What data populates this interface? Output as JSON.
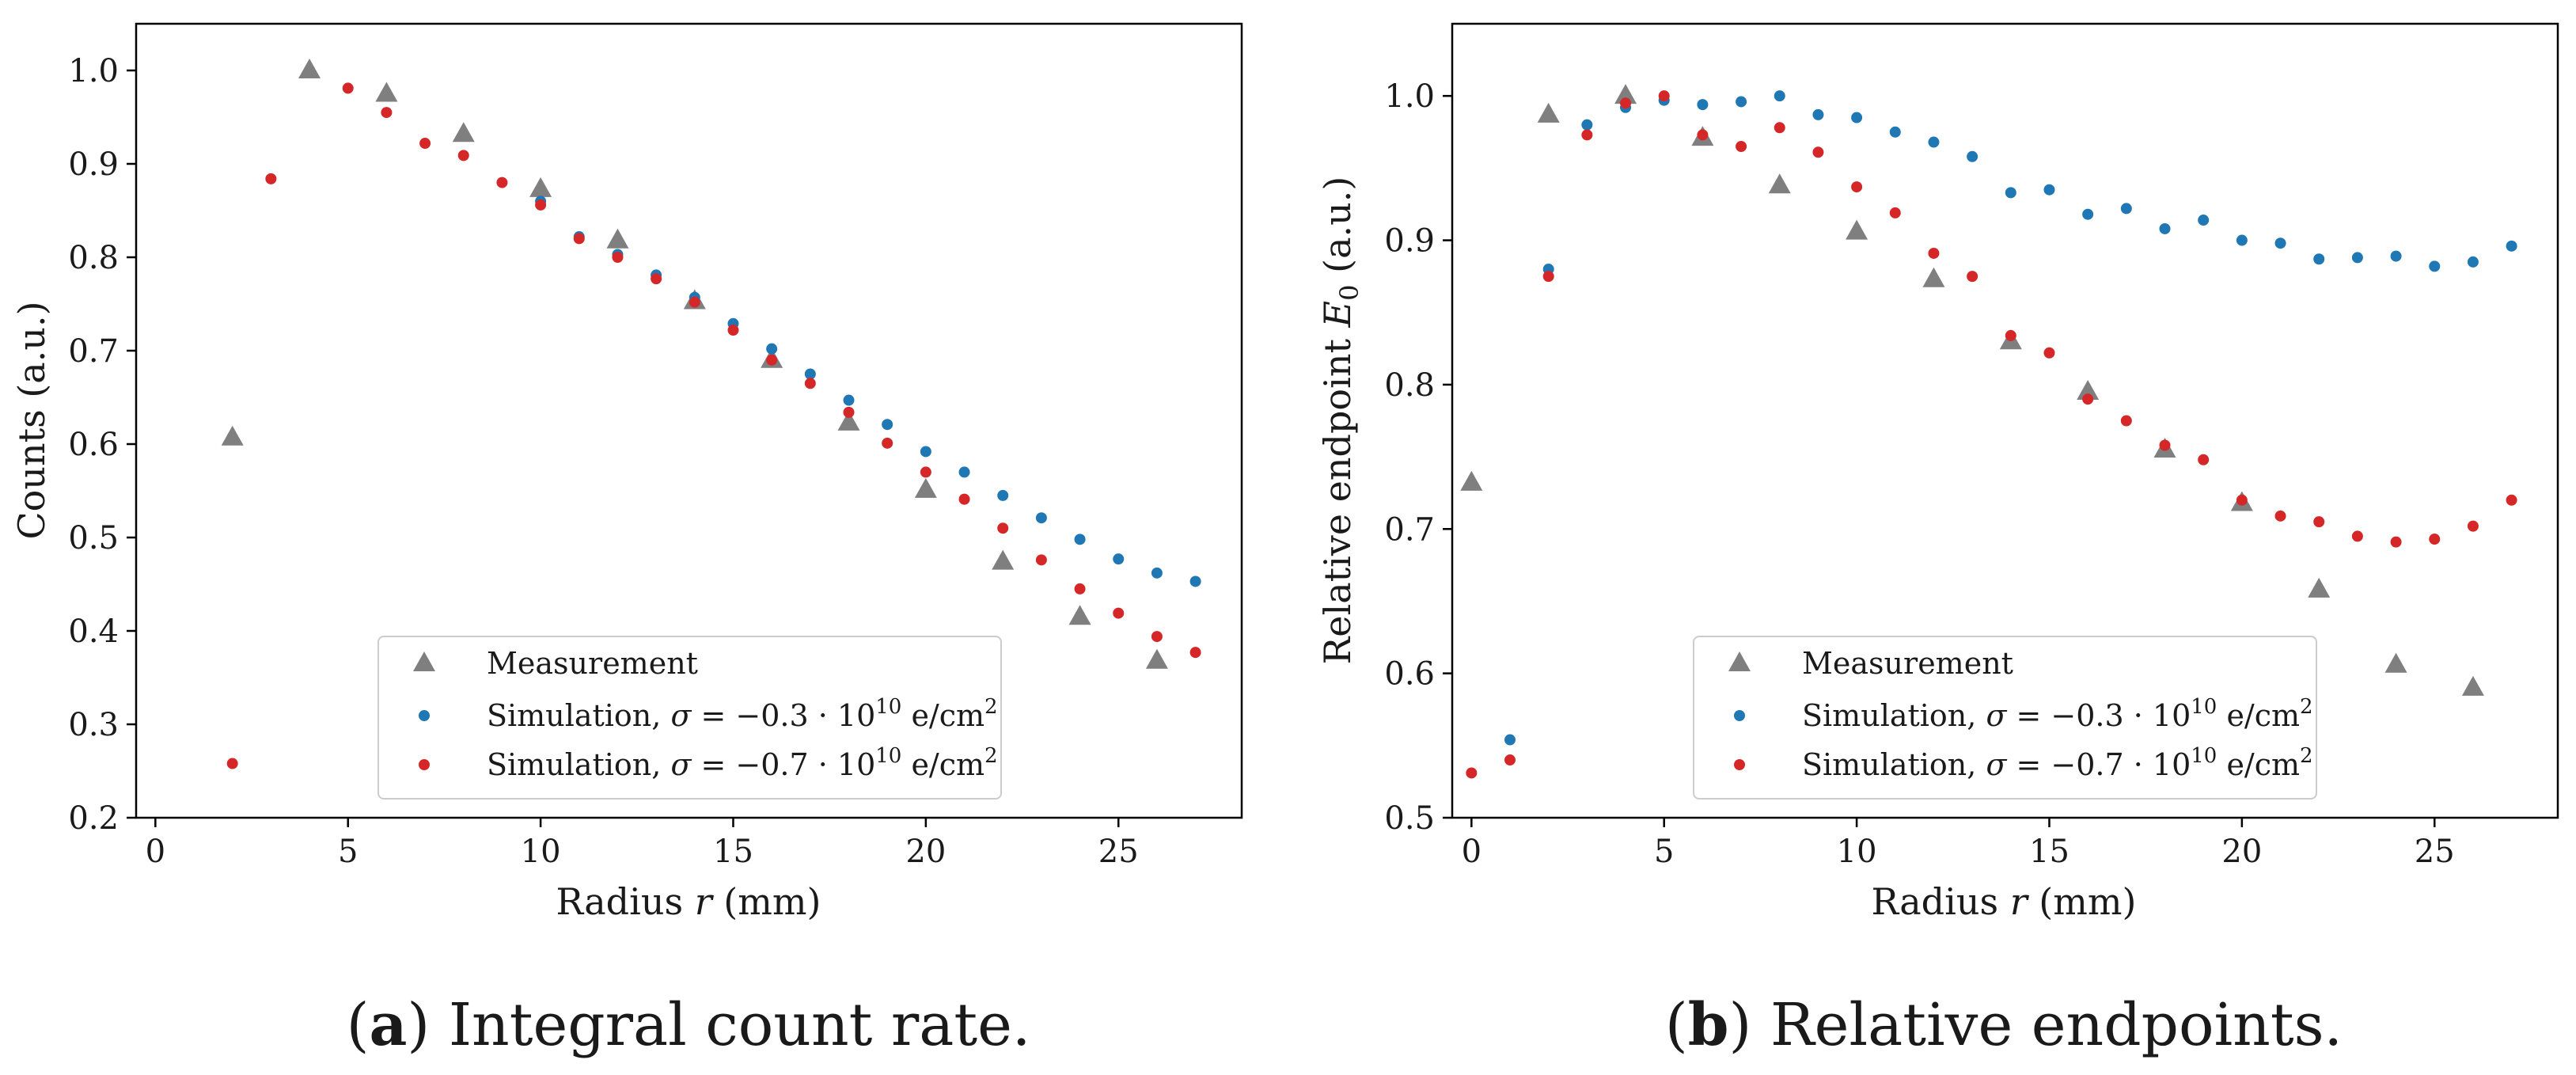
{
  "chart_data": [
    {
      "type": "scatter",
      "panel": "a",
      "caption_letter": "a",
      "caption_text": "Integral count rate.",
      "xlabel_pre": "Radius ",
      "xlabel_var": "r",
      "xlabel_post": " (mm)",
      "ylabel": "Counts (a.u.)",
      "xlim": [
        -0.5,
        28.2
      ],
      "ylim": [
        0.2,
        1.05
      ],
      "xticks": [
        0,
        5,
        10,
        15,
        20,
        25
      ],
      "yticks": [
        0.2,
        0.3,
        0.4,
        0.5,
        0.6,
        0.7,
        0.8,
        0.9,
        1.0
      ],
      "ytick_labels": [
        "0.2",
        "0.3",
        "0.4",
        "0.5",
        "0.6",
        "0.7",
        "0.8",
        "0.9",
        "1.0"
      ],
      "legend_position": "lower-center",
      "series": [
        {
          "name": "Measurement",
          "marker": "triangle",
          "color": "#7f7f7f",
          "x": [
            2,
            4,
            6,
            8,
            10,
            12,
            14,
            16,
            18,
            20,
            22,
            24,
            26
          ],
          "y": [
            0.607,
            1.0,
            0.975,
            0.932,
            0.873,
            0.818,
            0.753,
            0.69,
            0.623,
            0.551,
            0.474,
            0.415,
            0.368
          ]
        },
        {
          "name": "Simulation, σ = −0.3 · 10¹⁰ e/cm²",
          "marker": "dot",
          "color": "#1f77b4",
          "x": [
            10,
            11,
            12,
            13,
            14,
            15,
            16,
            17,
            18,
            19,
            20,
            21,
            22,
            23,
            24,
            25,
            26,
            27
          ],
          "y": [
            0.86,
            0.822,
            0.803,
            0.781,
            0.757,
            0.729,
            0.702,
            0.675,
            0.647,
            0.621,
            0.592,
            0.57,
            0.545,
            0.521,
            0.498,
            0.477,
            0.462,
            0.453
          ]
        },
        {
          "name": "Simulation, σ = −0.7 · 10¹⁰ e/cm²",
          "marker": "dot",
          "color": "#d62728",
          "x": [
            2,
            3,
            5,
            6,
            7,
            8,
            9,
            10,
            11,
            12,
            13,
            14,
            15,
            16,
            17,
            18,
            19,
            20,
            21,
            22,
            23,
            24,
            25,
            26,
            27
          ],
          "y": [
            0.258,
            0.884,
            0.981,
            0.955,
            0.922,
            0.909,
            0.88,
            0.856,
            0.82,
            0.8,
            0.777,
            0.752,
            0.722,
            0.69,
            0.665,
            0.634,
            0.601,
            0.57,
            0.541,
            0.51,
            0.476,
            0.445,
            0.419,
            0.394,
            0.377
          ]
        }
      ]
    },
    {
      "type": "scatter",
      "panel": "b",
      "caption_letter": "b",
      "caption_text": "Relative endpoints.",
      "xlabel_pre": "Radius ",
      "xlabel_var": "r",
      "xlabel_post": " (mm)",
      "ylabel_pre": "Relative endpoint ",
      "ylabel_var": "E",
      "ylabel_sub": "0",
      "ylabel_post": " (a.u.)",
      "xlim": [
        -0.5,
        28.2
      ],
      "ylim": [
        0.5,
        1.05
      ],
      "xticks": [
        0,
        5,
        10,
        15,
        20,
        25
      ],
      "yticks": [
        0.5,
        0.6,
        0.7,
        0.8,
        0.9,
        1.0
      ],
      "ytick_labels": [
        "0.5",
        "0.6",
        "0.7",
        "0.8",
        "0.9",
        "1.0"
      ],
      "legend_position": "lower-center",
      "series": [
        {
          "name": "Measurement",
          "marker": "triangle",
          "color": "#7f7f7f",
          "x": [
            0,
            2,
            4,
            6,
            8,
            10,
            12,
            14,
            16,
            18,
            20,
            22,
            24,
            26
          ],
          "y": [
            0.732,
            0.987,
            1.0,
            0.971,
            0.938,
            0.906,
            0.873,
            0.83,
            0.795,
            0.755,
            0.718,
            0.658,
            0.606,
            0.59
          ]
        },
        {
          "name": "Simulation, σ = −0.3 · 10¹⁰ e/cm²",
          "marker": "dot",
          "color": "#1f77b4",
          "x": [
            1,
            2,
            3,
            4,
            5,
            6,
            7,
            8,
            9,
            10,
            11,
            12,
            13,
            14,
            15,
            16,
            17,
            18,
            19,
            20,
            21,
            22,
            23,
            24,
            25,
            26,
            27
          ],
          "y": [
            0.554,
            0.88,
            0.98,
            0.992,
            0.997,
            0.994,
            0.996,
            1.0,
            0.987,
            0.985,
            0.975,
            0.968,
            0.958,
            0.933,
            0.935,
            0.918,
            0.922,
            0.908,
            0.914,
            0.9,
            0.898,
            0.887,
            0.888,
            0.889,
            0.882,
            0.885,
            0.896
          ]
        },
        {
          "name": "Simulation, σ = −0.7 · 10¹⁰ e/cm²",
          "marker": "dot",
          "color": "#d62728",
          "x": [
            0,
            1,
            2,
            3,
            4,
            5,
            6,
            7,
            8,
            9,
            10,
            11,
            12,
            13,
            14,
            15,
            16,
            17,
            18,
            19,
            20,
            21,
            22,
            23,
            24,
            25,
            26,
            27
          ],
          "y": [
            0.531,
            0.54,
            0.875,
            0.973,
            0.995,
            1.0,
            0.973,
            0.965,
            0.978,
            0.961,
            0.937,
            0.919,
            0.891,
            0.875,
            0.834,
            0.822,
            0.79,
            0.775,
            0.758,
            0.748,
            0.72,
            0.709,
            0.705,
            0.695,
            0.691,
            0.693,
            0.702,
            0.72
          ]
        }
      ]
    }
  ],
  "legend_labels": {
    "measurement": "Measurement",
    "sim_prefix": "Simulation, ",
    "sigma": "σ",
    "eq": " = ",
    "sim1_value": "−0.3 · 10",
    "sim2_value": "−0.7 · 10",
    "exponent": "10",
    "unit": " e/cm",
    "unit_exp": "2"
  }
}
